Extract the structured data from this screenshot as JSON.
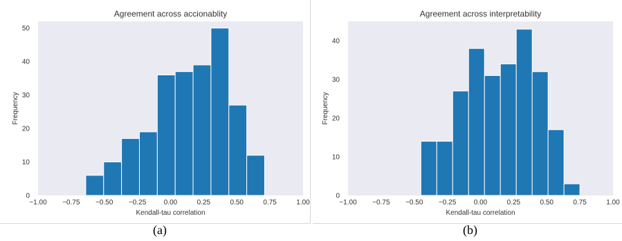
{
  "chart_data": [
    {
      "type": "bar",
      "title": "Agreement across accionablity",
      "xlabel": "Kendall-tau correlation",
      "ylabel": "Frequency",
      "xlim": [
        -1.0,
        1.0
      ],
      "ylim": [
        0,
        52
      ],
      "xticks": [
        "-1.00",
        "-0.75",
        "-0.50",
        "-0.25",
        "0.00",
        "0.25",
        "0.50",
        "0.75",
        "1.00"
      ],
      "yticks": [
        "0",
        "10",
        "20",
        "30",
        "40",
        "50"
      ],
      "bins": [
        {
          "x0": -0.64,
          "x1": -0.505,
          "value": 6
        },
        {
          "x0": -0.505,
          "x1": -0.37,
          "value": 10
        },
        {
          "x0": -0.37,
          "x1": -0.235,
          "value": 17
        },
        {
          "x0": -0.235,
          "x1": -0.1,
          "value": 19
        },
        {
          "x0": -0.1,
          "x1": 0.035,
          "value": 36
        },
        {
          "x0": 0.035,
          "x1": 0.17,
          "value": 37
        },
        {
          "x0": 0.17,
          "x1": 0.305,
          "value": 39
        },
        {
          "x0": 0.305,
          "x1": 0.44,
          "value": 50
        },
        {
          "x0": 0.44,
          "x1": 0.575,
          "value": 27
        },
        {
          "x0": 0.575,
          "x1": 0.71,
          "value": 12
        }
      ],
      "grid": false,
      "bar_color": "#1f77b4",
      "background_color": "#eaeaf2"
    },
    {
      "type": "bar",
      "title": "Agreement across interpretability",
      "xlabel": "Kendall-tau correlation",
      "ylabel": "Frequency",
      "xlim": [
        -1.0,
        1.0
      ],
      "ylim": [
        0,
        45
      ],
      "xticks": [
        "-1.00",
        "-0.75",
        "-0.50",
        "-0.25",
        "0.00",
        "0.25",
        "0.50",
        "0.75",
        "1.00"
      ],
      "yticks": [
        "0",
        "10",
        "20",
        "30",
        "40"
      ],
      "bins": [
        {
          "x0": -0.45,
          "x1": -0.33,
          "value": 14
        },
        {
          "x0": -0.33,
          "x1": -0.21,
          "value": 14
        },
        {
          "x0": -0.21,
          "x1": -0.09,
          "value": 27
        },
        {
          "x0": -0.09,
          "x1": 0.03,
          "value": 38
        },
        {
          "x0": 0.03,
          "x1": 0.15,
          "value": 31
        },
        {
          "x0": 0.15,
          "x1": 0.27,
          "value": 34
        },
        {
          "x0": 0.27,
          "x1": 0.39,
          "value": 43
        },
        {
          "x0": 0.39,
          "x1": 0.51,
          "value": 32
        },
        {
          "x0": 0.51,
          "x1": 0.63,
          "value": 17
        },
        {
          "x0": 0.63,
          "x1": 0.75,
          "value": 3
        }
      ],
      "grid": false,
      "bar_color": "#1f77b4",
      "background_color": "#eaeaf2"
    }
  ],
  "captions": {
    "a": "(a)",
    "b": "(b)"
  }
}
